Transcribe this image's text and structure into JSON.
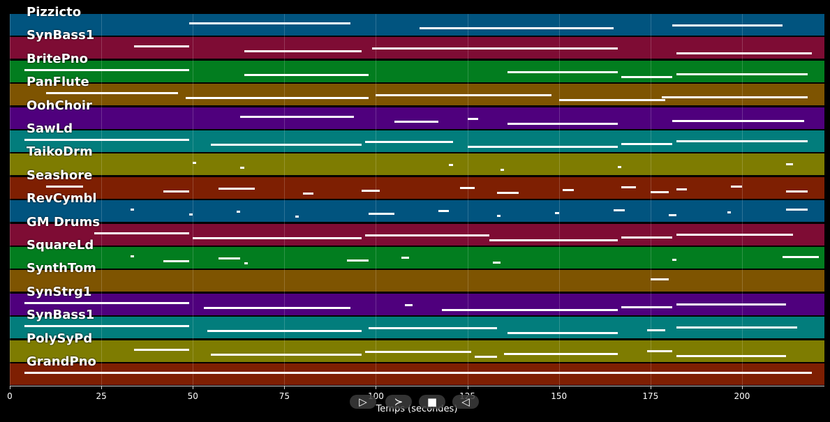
{
  "tracks": [
    {
      "name": "Pizzicto",
      "color": "#01547f"
    },
    {
      "name": "SynBass1",
      "color": "#7e0c34"
    },
    {
      "name": "BritePno",
      "color": "#027d1f"
    },
    {
      "name": "PanFlute",
      "color": "#7e5401"
    },
    {
      "name": "OohChoir",
      "color": "#4f007d"
    },
    {
      "name": "SawLd",
      "color": "#027d7c"
    },
    {
      "name": "TaikoDrm",
      "color": "#7e7c01"
    },
    {
      "name": "Seashore",
      "color": "#7e1f02"
    },
    {
      "name": "RevCymbl",
      "color": "#01547f"
    },
    {
      "name": "GM Drums",
      "color": "#7e0c34"
    },
    {
      "name": "SquareLd",
      "color": "#027d1f"
    },
    {
      "name": "SynthTom",
      "color": "#7e5401"
    },
    {
      "name": "SynStrg1",
      "color": "#4f007d"
    },
    {
      "name": "SynBass1",
      "color": "#027d7c"
    },
    {
      "name": "PolySyPd",
      "color": "#7e7c01"
    },
    {
      "name": "GrandPno",
      "color": "#7e1f02"
    }
  ],
  "notes": [
    [
      [
        49,
        93
      ],
      [
        112,
        165
      ],
      [
        181,
        211
      ]
    ],
    [
      [
        34,
        49
      ],
      [
        64,
        96
      ],
      [
        99,
        166
      ],
      [
        182,
        219
      ]
    ],
    [
      [
        4,
        49
      ],
      [
        64,
        98
      ],
      [
        136,
        166
      ],
      [
        167,
        181
      ],
      [
        182,
        218
      ]
    ],
    [
      [
        10,
        46
      ],
      [
        48,
        98
      ],
      [
        100,
        148
      ],
      [
        150,
        179
      ],
      [
        178,
        218
      ]
    ],
    [
      [
        63,
        94
      ],
      [
        105,
        117
      ],
      [
        125,
        128
      ],
      [
        136,
        166
      ],
      [
        181,
        217
      ]
    ],
    [
      [
        4,
        49
      ],
      [
        55,
        96
      ],
      [
        97,
        121
      ],
      [
        125,
        166
      ],
      [
        167,
        181
      ],
      [
        182,
        218
      ]
    ],
    [
      [
        50,
        51
      ],
      [
        63,
        64
      ],
      [
        120,
        121
      ],
      [
        134,
        135
      ],
      [
        166,
        167
      ],
      [
        212,
        214
      ]
    ],
    [
      [
        10,
        20
      ],
      [
        42,
        49
      ],
      [
        57,
        67
      ],
      [
        80,
        83
      ],
      [
        96,
        101
      ],
      [
        123,
        127
      ],
      [
        133,
        139
      ],
      [
        151,
        154
      ],
      [
        167,
        171
      ],
      [
        175,
        180
      ],
      [
        182,
        185
      ],
      [
        197,
        200
      ],
      [
        212,
        218
      ]
    ],
    [
      [
        33,
        34
      ],
      [
        49,
        50
      ],
      [
        62,
        63
      ],
      [
        78,
        79
      ],
      [
        98,
        105
      ],
      [
        117,
        120
      ],
      [
        133,
        134
      ],
      [
        149,
        150
      ],
      [
        165,
        168
      ],
      [
        180,
        182
      ],
      [
        196,
        197
      ],
      [
        212,
        218
      ]
    ],
    [
      [
        23,
        49
      ],
      [
        50,
        96
      ],
      [
        97,
        131
      ],
      [
        131,
        166
      ],
      [
        167,
        181
      ],
      [
        182,
        214
      ]
    ],
    [
      [
        33,
        34
      ],
      [
        42,
        49
      ],
      [
        57,
        63
      ],
      [
        64,
        65
      ],
      [
        92,
        98
      ],
      [
        107,
        109
      ],
      [
        132,
        134
      ],
      [
        181,
        182
      ],
      [
        211,
        221
      ]
    ],
    [
      [
        175,
        180
      ]
    ],
    [
      [
        4,
        49
      ],
      [
        53,
        93
      ],
      [
        108,
        110
      ],
      [
        118,
        166
      ],
      [
        167,
        181
      ],
      [
        182,
        212
      ]
    ],
    [
      [
        4,
        49
      ],
      [
        54,
        96
      ],
      [
        98,
        133
      ],
      [
        136,
        166
      ],
      [
        174,
        179
      ],
      [
        182,
        215
      ]
    ],
    [
      [
        34,
        49
      ],
      [
        55,
        96
      ],
      [
        97,
        126
      ],
      [
        127,
        133
      ],
      [
        135,
        166
      ],
      [
        174,
        181
      ],
      [
        182,
        212
      ]
    ],
    [
      [
        4,
        219
      ]
    ]
  ],
  "axis": {
    "ticks": [
      "0",
      "25",
      "50",
      "75",
      "100",
      "125",
      "150",
      "175",
      "200"
    ],
    "tick_values": [
      0,
      25,
      50,
      75,
      100,
      125,
      150,
      175,
      200
    ],
    "x_max": 222.5,
    "xlabel": "Temps (secondes)"
  },
  "controls": [
    {
      "name": "play-button",
      "glyph": "▷"
    },
    {
      "name": "next-button",
      "glyph": "≻"
    },
    {
      "name": "stop-button",
      "glyph": "■"
    },
    {
      "name": "rewind-button",
      "glyph": "◁"
    }
  ]
}
